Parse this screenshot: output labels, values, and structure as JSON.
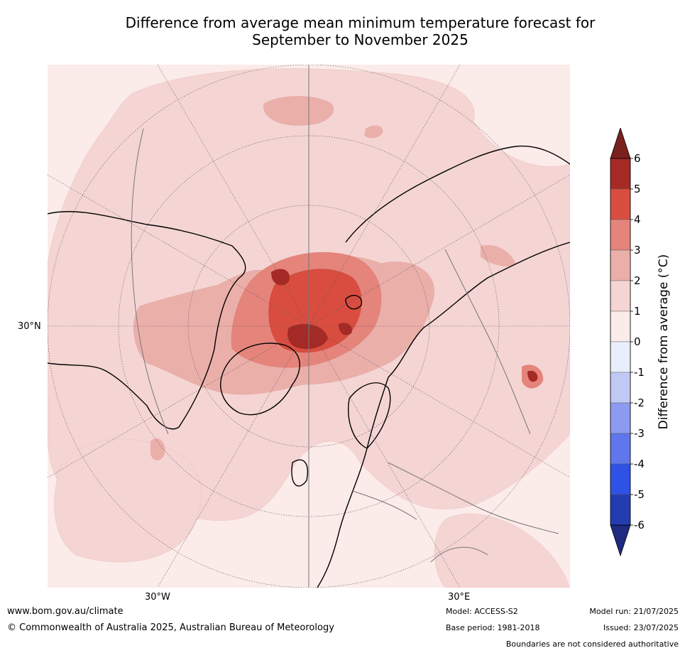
{
  "title": {
    "line1": "Difference from average mean minimum temperature forecast for",
    "line2": "September to November 2025"
  },
  "map": {
    "projection": "north-polar-stereographic",
    "lat_label": "30°N",
    "lon_labels": [
      "30°W",
      "30°E"
    ],
    "feature_names": [
      "coastlines",
      "country-boundaries",
      "graticule",
      "anomaly-contours"
    ]
  },
  "colorbar": {
    "label": "Difference from average (°C)",
    "ticks": [
      "6",
      "5",
      "4",
      "3",
      "2",
      "1",
      "0",
      "-1",
      "-2",
      "-3",
      "-4",
      "-5",
      "-6"
    ],
    "levels": [
      {
        "range": "> 6",
        "color": "#7a2120"
      },
      {
        "range": "5 to 6",
        "color": "#a52a25"
      },
      {
        "range": "4 to 5",
        "color": "#d94d40"
      },
      {
        "range": "3 to 4",
        "color": "#e5847b"
      },
      {
        "range": "2 to 3",
        "color": "#ebafaa"
      },
      {
        "range": "1 to 2",
        "color": "#f4d5d3"
      },
      {
        "range": "0 to 1",
        "color": "#fbebe9"
      },
      {
        "range": "-1 to 0",
        "color": "#e9eefc"
      },
      {
        "range": "-2 to -1",
        "color": "#c0c9f4"
      },
      {
        "range": "-3 to -2",
        "color": "#8c9bf0"
      },
      {
        "range": "-4 to -3",
        "color": "#5f76ec"
      },
      {
        "range": "-5 to -4",
        "color": "#2e52e6"
      },
      {
        "range": "-6 to -5",
        "color": "#233cb0"
      },
      {
        "range": "< -6",
        "color": "#1f2b80"
      }
    ]
  },
  "footer": {
    "website": "www.bom.gov.au/climate",
    "copyright": "© Commonwealth of Australia 2025, Australian Bureau of Meteorology",
    "model": "Model: ACCESS-S2",
    "base_period": "Base period: 1981-2018",
    "model_run": "Model run: 21/07/2025",
    "issued": "Issued: 23/07/2025",
    "disclaimer": "Boundaries are not considered authoritative"
  }
}
